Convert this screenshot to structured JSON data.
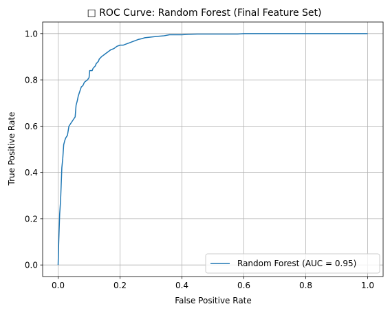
{
  "chart_data": {
    "type": "line",
    "title": "□ ROC Curve: Random Forest (Final Feature Set)",
    "xlabel": "False Positive Rate",
    "ylabel": "True Positive Rate",
    "xlim": [
      -0.05,
      1.05
    ],
    "ylim": [
      -0.05,
      1.05
    ],
    "xticks": [
      0.0,
      0.2,
      0.4,
      0.6,
      0.8,
      1.0
    ],
    "yticks": [
      0.0,
      0.2,
      0.4,
      0.6,
      0.8,
      1.0
    ],
    "xtick_labels": [
      "0.0",
      "0.2",
      "0.4",
      "0.6",
      "0.8",
      "1.0"
    ],
    "ytick_labels": [
      "0.0",
      "0.2",
      "0.4",
      "0.6",
      "0.8",
      "1.0"
    ],
    "grid": true,
    "legend_position": "lower-right",
    "series": [
      {
        "name": "Random Forest (AUC = 0.95)",
        "color": "#1f77b4",
        "x": [
          0.0,
          0.002,
          0.005,
          0.008,
          0.01,
          0.012,
          0.015,
          0.018,
          0.02,
          0.022,
          0.025,
          0.03,
          0.035,
          0.04,
          0.045,
          0.05,
          0.055,
          0.058,
          0.062,
          0.065,
          0.07,
          0.075,
          0.08,
          0.085,
          0.095,
          0.1,
          0.102,
          0.11,
          0.113,
          0.12,
          0.123,
          0.13,
          0.133,
          0.14,
          0.15,
          0.155,
          0.16,
          0.17,
          0.18,
          0.185,
          0.19,
          0.2,
          0.21,
          0.22,
          0.23,
          0.24,
          0.25,
          0.26,
          0.27,
          0.28,
          0.3,
          0.32,
          0.34,
          0.36,
          0.38,
          0.4,
          0.42,
          0.45,
          0.5,
          0.55,
          0.58,
          0.6,
          0.7,
          0.8,
          0.9,
          1.0
        ],
        "y": [
          0.0,
          0.1,
          0.22,
          0.28,
          0.35,
          0.42,
          0.46,
          0.52,
          0.53,
          0.54,
          0.55,
          0.56,
          0.6,
          0.61,
          0.62,
          0.63,
          0.64,
          0.69,
          0.71,
          0.73,
          0.75,
          0.77,
          0.775,
          0.79,
          0.8,
          0.81,
          0.84,
          0.84,
          0.85,
          0.86,
          0.87,
          0.88,
          0.89,
          0.9,
          0.91,
          0.915,
          0.92,
          0.93,
          0.935,
          0.94,
          0.945,
          0.95,
          0.95,
          0.955,
          0.96,
          0.965,
          0.97,
          0.975,
          0.978,
          0.982,
          0.985,
          0.988,
          0.99,
          0.995,
          0.995,
          0.995,
          0.997,
          0.998,
          0.998,
          0.998,
          0.998,
          1.0,
          1.0,
          1.0,
          1.0,
          1.0
        ]
      }
    ]
  }
}
